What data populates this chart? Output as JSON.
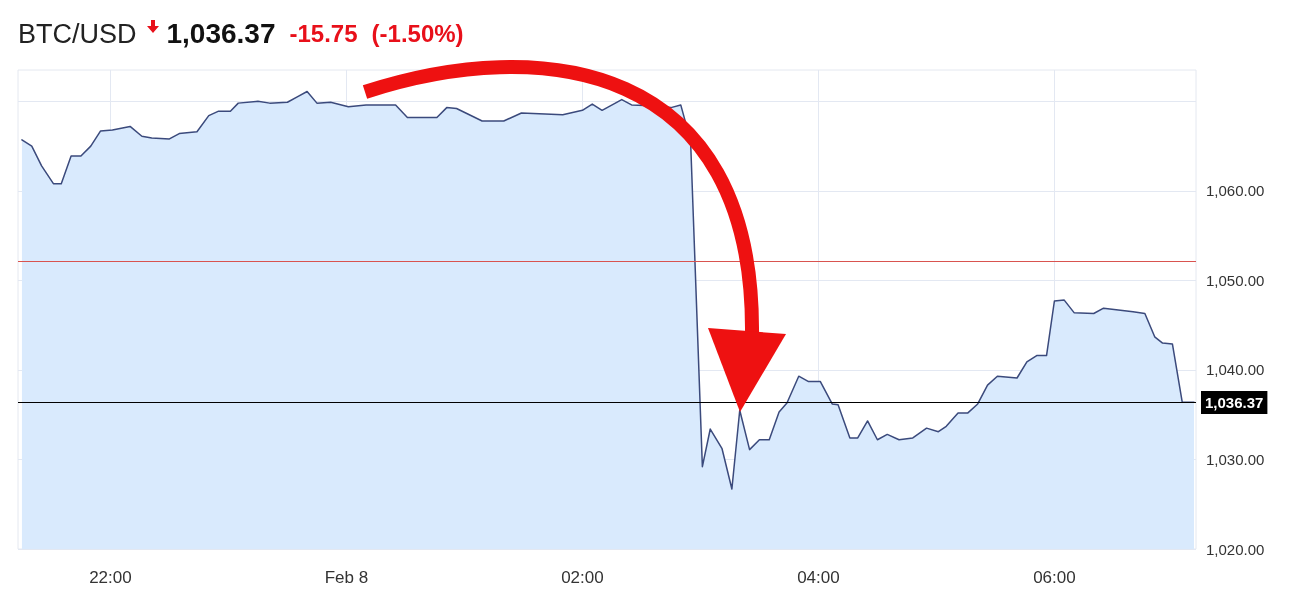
{
  "chart_data": {
    "type": "area",
    "title": "BTC/USD",
    "annotations": [
      "1,036.37",
      "-15.75",
      "(-1.50%)"
    ],
    "series": [
      {
        "color": "#3b4a7c",
        "x": [
          "--02-07T21:15",
          "--02-07T21:20",
          "--02-07T21:25",
          "--02-07T21:31",
          "--02-07T21:35",
          "--02-07T21:40",
          "--02-07T21:45",
          "--02-07T21:50",
          "--02-07T21:55",
          "--02-07T22:01",
          "--02-07T22:10",
          "--02-07T22:16",
          "--02-07T22:21",
          "--02-07T22:30",
          "--02-07T22:35",
          "--02-07T22:44",
          "--02-07T22:50",
          "--02-07T22:55",
          "--02-07T23:01",
          "--02-07T23:05",
          "--02-07T23:15",
          "--02-07T23:21",
          "--02-07T23:30",
          "--02-07T23:35",
          "--02-07T23:40",
          "--02-07T23:45",
          "--02-07T23:52",
          "--02-08T00:01",
          "--02-08T00:10",
          "--02-08T00:25",
          "--02-08T00:31",
          "--02-08T00:46",
          "--02-08T00:51",
          "--02-08T00:56",
          "--02-08T01:09",
          "--02-08T01:20",
          "--02-08T01:29",
          "--02-08T01:50",
          "--02-08T02:00",
          "--02-08T02:05",
          "--02-08T02:10",
          "--02-08T02:20",
          "--02-08T02:25",
          "--02-08T02:35",
          "--02-08T02:45",
          "--02-08T02:50",
          "--02-08T02:55",
          "--02-08T03:01",
          "--02-08T03:05",
          "--02-08T03:11",
          "--02-08T03:16",
          "--02-08T03:20",
          "--02-08T03:25",
          "--02-08T03:30",
          "--02-08T03:35",
          "--02-08T03:40",
          "--02-08T03:44",
          "--02-08T03:50",
          "--02-08T03:55",
          "--02-08T04:01",
          "--02-08T04:07",
          "--02-08T04:10",
          "--02-08T04:16",
          "--02-08T04:20",
          "--02-08T04:25",
          "--02-08T04:30",
          "--02-08T04:35",
          "--02-08T04:41",
          "--02-08T04:48",
          "--02-08T04:55",
          "--02-08T05:01",
          "--02-08T05:05",
          "--02-08T05:11",
          "--02-08T05:16",
          "--02-08T05:21",
          "--02-08T05:26",
          "--02-08T05:31",
          "--02-08T05:41",
          "--02-08T05:46",
          "--02-08T05:51",
          "--02-08T05:56",
          "--02-08T06:00",
          "--02-08T06:05",
          "--02-08T06:10",
          "--02-08T06:20",
          "--02-08T06:25",
          "--02-08T06:40",
          "--02-08T06:46",
          "--02-08T06:51",
          "--02-08T06:55",
          "--02-08T07:00",
          "--02-08T07:05",
          "--02-08T07:11"
        ],
        "values": [
          1065.7,
          1065.0,
          1062.8,
          1060.8,
          1060.8,
          1063.9,
          1063.9,
          1065.0,
          1066.7,
          1066.8,
          1067.2,
          1066.1,
          1065.9,
          1065.8,
          1066.4,
          1066.6,
          1068.4,
          1068.9,
          1068.9,
          1069.8,
          1070.0,
          1069.8,
          1069.9,
          1070.5,
          1071.1,
          1069.8,
          1069.9,
          1069.4,
          1069.6,
          1069.6,
          1068.2,
          1068.2,
          1069.3,
          1069.2,
          1067.8,
          1067.8,
          1068.7,
          1068.5,
          1069.0,
          1069.7,
          1069.0,
          1070.2,
          1069.6,
          1069.5,
          1069.3,
          1069.6,
          1065.6,
          1029.2,
          1033.4,
          1031.2,
          1026.7,
          1035.5,
          1031.1,
          1032.2,
          1032.2,
          1035.3,
          1036.3,
          1039.3,
          1038.7,
          1038.7,
          1036.2,
          1036.1,
          1032.4,
          1032.4,
          1034.3,
          1032.2,
          1032.8,
          1032.2,
          1032.4,
          1033.5,
          1033.1,
          1033.7,
          1035.2,
          1035.2,
          1036.2,
          1038.3,
          1039.3,
          1039.1,
          1040.9,
          1041.6,
          1041.6,
          1047.7,
          1047.8,
          1046.4,
          1046.3,
          1046.9,
          1046.5,
          1046.3,
          1043.7,
          1043.0,
          1042.9,
          1036.4,
          1036.4
        ]
      }
    ],
    "xlim": [
      "--02-07T21:13",
      "--02-08T07:12"
    ],
    "xticks": [
      {
        "value": "--02-07T22:00",
        "label": "22:00"
      },
      {
        "value": "--02-08T00:00",
        "label": "Feb 8"
      },
      {
        "value": "--02-08T02:00",
        "label": "02:00"
      },
      {
        "value": "--02-08T04:00",
        "label": "04:00"
      },
      {
        "value": "--02-08T06:00",
        "label": "06:00"
      }
    ],
    "ylim": [
      1020,
      1073.5
    ],
    "yticks": [
      {
        "value": 1020,
        "label": "1,020.00"
      },
      {
        "value": 1030,
        "label": "1,030.00"
      },
      {
        "value": 1040,
        "label": "1,040.00"
      },
      {
        "value": 1050,
        "label": "1,050.00"
      },
      {
        "value": 1060,
        "label": "1,060.00"
      },
      {
        "value": 1070,
        "label": null
      }
    ],
    "ref_lines": [
      {
        "axis": "y",
        "value": 1052.12,
        "color": "#d9534f"
      },
      {
        "axis": "y",
        "value": 1036.37,
        "label": "1,036.37",
        "color": "#000000"
      }
    ],
    "grid": true,
    "marker": "none",
    "line_style": "solid"
  }
}
